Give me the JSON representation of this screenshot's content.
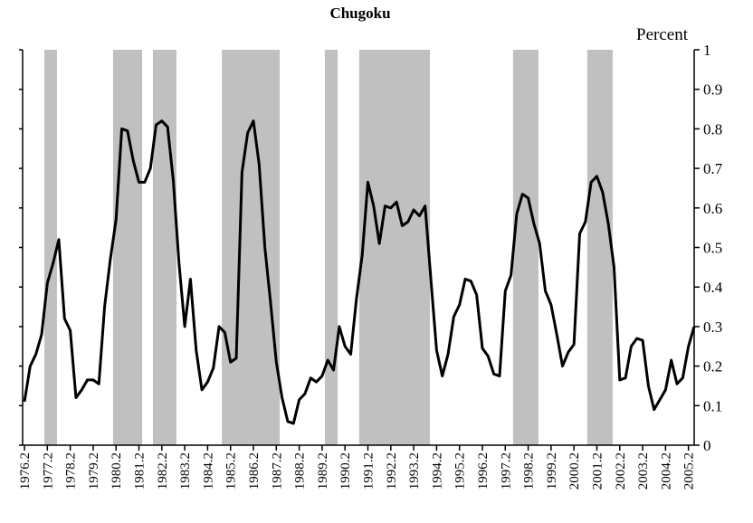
{
  "chart_data": {
    "type": "line",
    "title": "Chugoku",
    "y_axis_label": "Percent",
    "y_axis_side": "right",
    "color": "#000000",
    "shade_color": "#c0c0c0",
    "x": [
      1976.25,
      1976.5,
      1976.75,
      1977,
      1977.25,
      1977.5,
      1977.75,
      1978,
      1978.25,
      1978.5,
      1978.75,
      1979,
      1979.25,
      1979.5,
      1979.75,
      1980,
      1980.25,
      1980.5,
      1980.75,
      1981,
      1981.25,
      1981.5,
      1981.75,
      1982,
      1982.25,
      1982.5,
      1982.75,
      1983,
      1983.25,
      1983.5,
      1983.75,
      1984,
      1984.25,
      1984.5,
      1984.75,
      1985,
      1985.25,
      1985.5,
      1985.75,
      1986,
      1986.25,
      1986.5,
      1986.75,
      1987,
      1987.25,
      1987.5,
      1987.75,
      1988,
      1988.25,
      1988.5,
      1988.75,
      1989,
      1989.25,
      1989.5,
      1989.75,
      1990,
      1990.25,
      1990.5,
      1990.75,
      1991,
      1991.25,
      1991.5,
      1991.75,
      1992,
      1992.25,
      1992.5,
      1992.75,
      1993,
      1993.25,
      1993.5,
      1993.75,
      1994,
      1994.25,
      1994.5,
      1994.75,
      1995,
      1995.25,
      1995.5,
      1995.75,
      1996,
      1996.25,
      1996.5,
      1996.75,
      1997,
      1997.25,
      1997.5,
      1997.75,
      1998,
      1998.25,
      1998.5,
      1998.75,
      1999,
      1999.25,
      1999.5,
      1999.75,
      2000,
      2000.25,
      2000.5,
      2000.75,
      2001,
      2001.25,
      2001.5,
      2001.75,
      2002,
      2002.25,
      2002.5,
      2002.75,
      2003,
      2003.25,
      2003.5,
      2003.75,
      2004,
      2004.25,
      2004.5,
      2004.75,
      2005,
      2005.25,
      2005.5
    ],
    "values": [
      0.11,
      0.2,
      0.23,
      0.28,
      0.41,
      0.46,
      0.52,
      0.32,
      0.29,
      0.12,
      0.14,
      0.165,
      0.165,
      0.155,
      0.35,
      0.47,
      0.57,
      0.8,
      0.795,
      0.72,
      0.665,
      0.665,
      0.7,
      0.81,
      0.82,
      0.805,
      0.67,
      0.46,
      0.3,
      0.42,
      0.24,
      0.14,
      0.16,
      0.195,
      0.3,
      0.285,
      0.21,
      0.22,
      0.69,
      0.79,
      0.82,
      0.71,
      0.5,
      0.36,
      0.21,
      0.12,
      0.06,
      0.055,
      0.115,
      0.13,
      0.17,
      0.16,
      0.175,
      0.215,
      0.19,
      0.3,
      0.25,
      0.23,
      0.37,
      0.48,
      0.665,
      0.605,
      0.51,
      0.605,
      0.6,
      0.615,
      0.555,
      0.565,
      0.595,
      0.58,
      0.605,
      0.42,
      0.24,
      0.175,
      0.23,
      0.325,
      0.355,
      0.42,
      0.415,
      0.38,
      0.245,
      0.225,
      0.18,
      0.175,
      0.39,
      0.43,
      0.585,
      0.635,
      0.625,
      0.56,
      0.51,
      0.39,
      0.355,
      0.28,
      0.2,
      0.235,
      0.255,
      0.535,
      0.565,
      0.665,
      0.68,
      0.64,
      0.56,
      0.45,
      0.165,
      0.17,
      0.25,
      0.27,
      0.265,
      0.15,
      0.09,
      0.115,
      0.14,
      0.215,
      0.155,
      0.17,
      0.25,
      0.3
    ],
    "shaded_periods": [
      [
        1977.12,
        1977.67
      ],
      [
        1980.12,
        1981.39
      ],
      [
        1981.86,
        1982.89
      ],
      [
        1984.87,
        1987.4
      ],
      [
        1989.37,
        1989.93
      ],
      [
        1990.87,
        1993.96
      ],
      [
        1997.59,
        1998.7
      ],
      [
        2000.83,
        2001.94
      ]
    ],
    "xlim": [
      1976.17,
      2005.5
    ],
    "xticks": [
      {
        "value": 1976.25,
        "label": "1976.2"
      },
      {
        "value": 1977.25,
        "label": "1977.2"
      },
      {
        "value": 1978.25,
        "label": "1978.2"
      },
      {
        "value": 1979.25,
        "label": "1979.2"
      },
      {
        "value": 1980.25,
        "label": "1980.2"
      },
      {
        "value": 1981.25,
        "label": "1981.2"
      },
      {
        "value": 1982.25,
        "label": "1982.2"
      },
      {
        "value": 1983.25,
        "label": "1983.2"
      },
      {
        "value": 1984.25,
        "label": "1984.2"
      },
      {
        "value": 1985.25,
        "label": "1985.2"
      },
      {
        "value": 1986.25,
        "label": "1986.2"
      },
      {
        "value": 1987.25,
        "label": "1987.2"
      },
      {
        "value": 1988.25,
        "label": "1988.2"
      },
      {
        "value": 1989.25,
        "label": "1989.2"
      },
      {
        "value": 1990.25,
        "label": "1990.2"
      },
      {
        "value": 1991.25,
        "label": "1991.2"
      },
      {
        "value": 1992.25,
        "label": "1992.2"
      },
      {
        "value": 1993.25,
        "label": "1993.2"
      },
      {
        "value": 1994.25,
        "label": "1994.2"
      },
      {
        "value": 1995.25,
        "label": "1995.2"
      },
      {
        "value": 1996.25,
        "label": "1996.2"
      },
      {
        "value": 1997.25,
        "label": "1997.2"
      },
      {
        "value": 1998.25,
        "label": "1998.2"
      },
      {
        "value": 1999.25,
        "label": "1999.2"
      },
      {
        "value": 2000.25,
        "label": "2000.2"
      },
      {
        "value": 2001.25,
        "label": "2001.2"
      },
      {
        "value": 2002.25,
        "label": "2002.2"
      },
      {
        "value": 2003.25,
        "label": "2003.2"
      },
      {
        "value": 2004.25,
        "label": "2004.2"
      },
      {
        "value": 2005.25,
        "label": "2005.2"
      }
    ],
    "ylim": [
      0,
      1
    ],
    "yticks": [
      0,
      0.1,
      0.2,
      0.3,
      0.4,
      0.5,
      0.6,
      0.7,
      0.8,
      0.9,
      1
    ]
  }
}
